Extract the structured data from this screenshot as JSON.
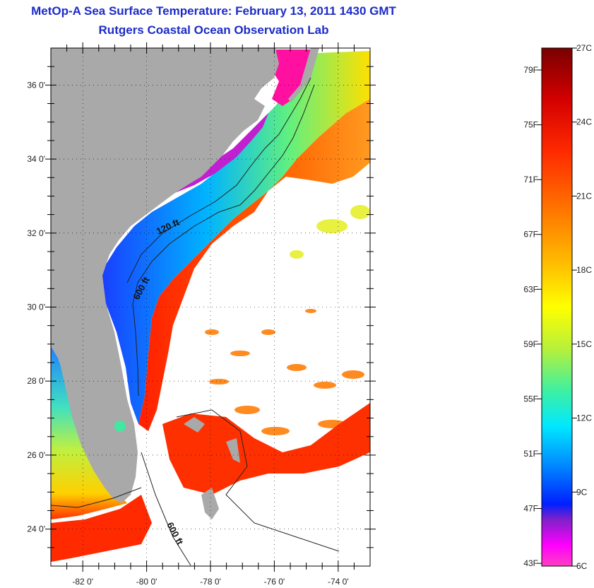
{
  "title": "MetOp-A Sea Surface Temperature:  February 13, 2011 1430 GMT",
  "subtitle": "Rutgers Coastal Ocean Observation Lab",
  "map": {
    "lat_labels": [
      "36 0'",
      "34 0'",
      "32 0'",
      "30 0'",
      "28 0'",
      "26 0'",
      "24 0'"
    ],
    "lat_values": [
      36,
      34,
      32,
      30,
      28,
      26,
      24
    ],
    "lon_labels": [
      "-82 0'",
      "-80 0'",
      "-78 0'",
      "-76 0'",
      "-74 0'"
    ],
    "lon_values": [
      -82,
      -80,
      -78,
      -76,
      -74
    ],
    "lon_range": [
      -83,
      -73
    ],
    "lat_range": [
      23,
      37
    ],
    "contour_labels": [
      "120 ft",
      "600 ft",
      "600 ft"
    ],
    "land_color": "#a9a9a9",
    "cloud_color": "#ffffff"
  },
  "colorbar": {
    "fahrenheit_labels": [
      "79F",
      "75F",
      "71F",
      "67F",
      "63F",
      "59F",
      "55F",
      "51F",
      "47F",
      "43F"
    ],
    "celsius_labels": [
      "27C",
      "24C",
      "21C",
      "18C",
      "15C",
      "12C",
      "9C",
      "6C"
    ],
    "colors": [
      "#7a0000",
      "#d40000",
      "#ff2a00",
      "#ff7a00",
      "#ffc000",
      "#ffff00",
      "#b8f03a",
      "#40f0a0",
      "#00e8ff",
      "#0090ff",
      "#0020ff",
      "#8020c8",
      "#ff00ff",
      "#ff40c0"
    ]
  }
}
